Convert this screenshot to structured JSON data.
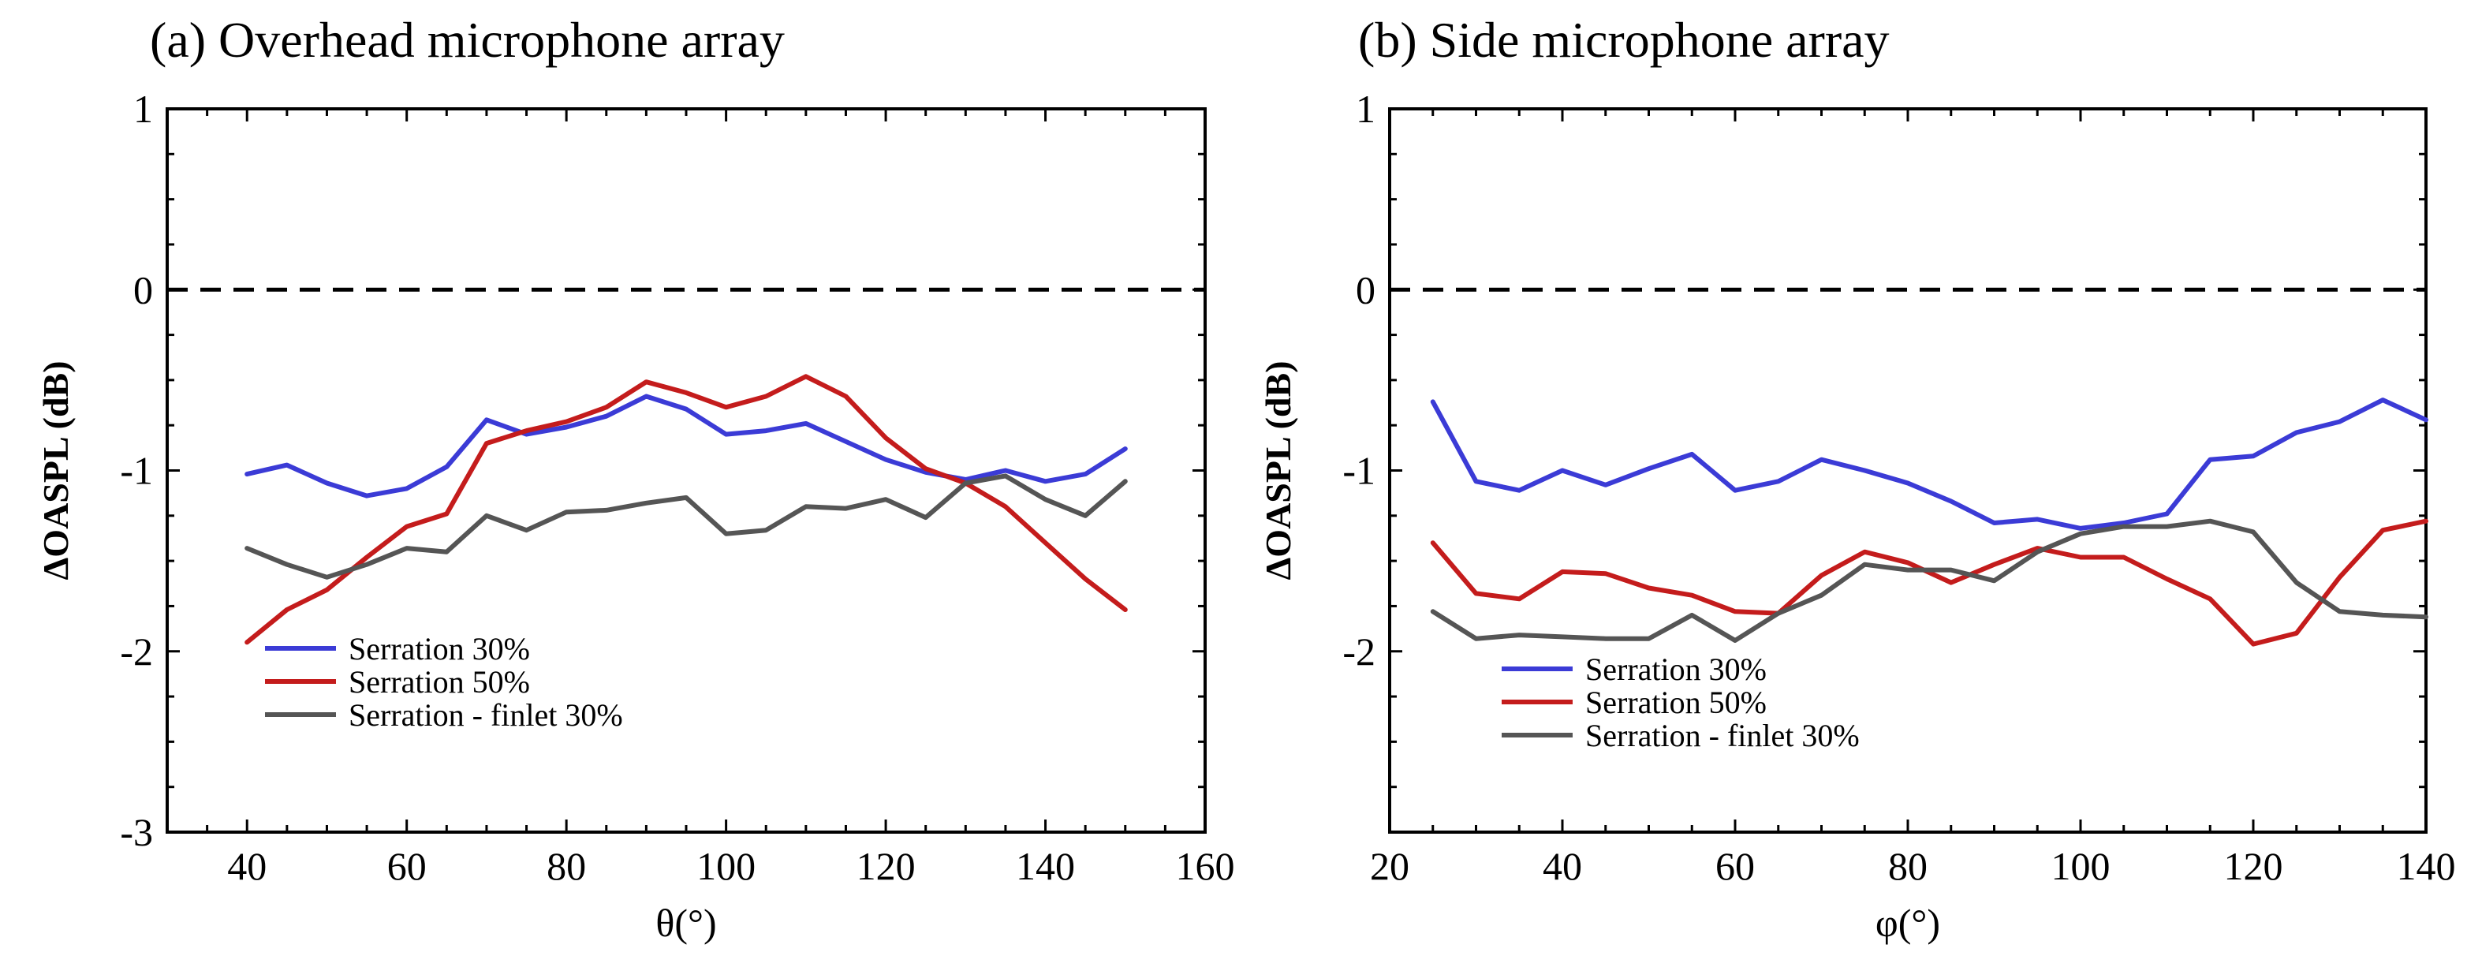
{
  "chart_data": [
    {
      "type": "line",
      "title": "(a) Overhead microphone array",
      "xlabel": "θ(°)",
      "ylabel": "ΔOASPL (dB)",
      "xlim": [
        30,
        160
      ],
      "ylim": [
        -3,
        1
      ],
      "xticks": [
        40,
        60,
        80,
        100,
        120,
        140,
        160
      ],
      "yticks": [
        -3,
        -2,
        -1,
        0,
        1
      ],
      "xtick_labels": [
        "40",
        "60",
        "80",
        "100",
        "120",
        "140",
        "160"
      ],
      "ytick_labels": [
        "-3",
        "-2",
        "-1",
        "0",
        "1"
      ],
      "reference_line": {
        "y": 0,
        "style": "dashed"
      },
      "legend_position": "lower-left",
      "series": [
        {
          "name": "Serration 30%",
          "color": "#3b3bd6",
          "x": [
            40,
            45,
            50,
            55,
            60,
            65,
            70,
            75,
            80,
            85,
            90,
            95,
            100,
            105,
            110,
            115,
            120,
            125,
            130,
            135,
            140,
            145,
            150
          ],
          "y": [
            -1.02,
            -0.97,
            -1.07,
            -1.14,
            -1.1,
            -0.98,
            -0.72,
            -0.8,
            -0.76,
            -0.7,
            -0.59,
            -0.66,
            -0.8,
            -0.78,
            -0.74,
            -0.84,
            -0.94,
            -1.01,
            -1.05,
            -1.0,
            -1.06,
            -1.02,
            -0.88
          ]
        },
        {
          "name": "Serration 50%",
          "color": "#c41c1c",
          "x": [
            40,
            45,
            50,
            55,
            60,
            65,
            70,
            75,
            80,
            85,
            90,
            95,
            100,
            105,
            110,
            115,
            120,
            125,
            130,
            135,
            140,
            145,
            150
          ],
          "y": [
            -1.95,
            -1.77,
            -1.66,
            -1.48,
            -1.31,
            -1.24,
            -0.85,
            -0.78,
            -0.73,
            -0.65,
            -0.51,
            -0.57,
            -0.65,
            -0.59,
            -0.48,
            -0.59,
            -0.82,
            -0.99,
            -1.07,
            -1.2,
            -1.4,
            -1.6,
            -1.77
          ]
        },
        {
          "name": "Serration - finlet 30%",
          "color": "#555555",
          "x": [
            40,
            45,
            50,
            55,
            60,
            65,
            70,
            75,
            80,
            85,
            90,
            95,
            100,
            105,
            110,
            115,
            120,
            125,
            130,
            135,
            140,
            145,
            150
          ],
          "y": [
            -1.43,
            -1.52,
            -1.59,
            -1.52,
            -1.43,
            -1.45,
            -1.25,
            -1.33,
            -1.23,
            -1.22,
            -1.18,
            -1.15,
            -1.35,
            -1.33,
            -1.2,
            -1.21,
            -1.16,
            -1.26,
            -1.07,
            -1.03,
            -1.16,
            -1.25,
            -1.06
          ]
        }
      ]
    },
    {
      "type": "line",
      "title": "(b) Side microphone array",
      "xlabel": "φ(°)",
      "ylabel": "ΔOASPL (dB)",
      "xlim": [
        20,
        140
      ],
      "ylim": [
        -3,
        1
      ],
      "xticks": [
        20,
        40,
        60,
        80,
        100,
        120,
        140
      ],
      "yticks": [
        -2,
        -1,
        0,
        1
      ],
      "xtick_labels": [
        "20",
        "40",
        "60",
        "80",
        "100",
        "120",
        "140"
      ],
      "ytick_labels": [
        "-2",
        "-1",
        "0",
        "1"
      ],
      "reference_line": {
        "y": 0,
        "style": "dashed"
      },
      "legend_position": "lower-left",
      "series": [
        {
          "name": "Serration 30%",
          "color": "#3b3bd6",
          "x": [
            25,
            30,
            35,
            40,
            45,
            50,
            55,
            60,
            65,
            70,
            75,
            80,
            85,
            90,
            95,
            100,
            105,
            110,
            115,
            120,
            125,
            130,
            135,
            140
          ],
          "y": [
            -0.62,
            -1.06,
            -1.11,
            -1.0,
            -1.08,
            -0.99,
            -0.91,
            -1.11,
            -1.06,
            -0.94,
            -1.0,
            -1.07,
            -1.17,
            -1.29,
            -1.27,
            -1.32,
            -1.29,
            -1.24,
            -0.94,
            -0.92,
            -0.79,
            -0.73,
            -0.61,
            -0.72
          ]
        },
        {
          "name": "Serration 50%",
          "color": "#c41c1c",
          "x": [
            25,
            30,
            35,
            40,
            45,
            50,
            55,
            60,
            65,
            70,
            75,
            80,
            85,
            90,
            95,
            100,
            105,
            110,
            115,
            120,
            125,
            130,
            135,
            140
          ],
          "y": [
            -1.4,
            -1.68,
            -1.71,
            -1.56,
            -1.57,
            -1.65,
            -1.69,
            -1.78,
            -1.79,
            -1.58,
            -1.45,
            -1.51,
            -1.62,
            -1.52,
            -1.43,
            -1.48,
            -1.48,
            -1.6,
            -1.71,
            -1.96,
            -1.9,
            -1.59,
            -1.33,
            -1.28
          ]
        },
        {
          "name": "Serration - finlet 30%",
          "color": "#555555",
          "x": [
            25,
            30,
            35,
            40,
            45,
            50,
            55,
            60,
            65,
            70,
            75,
            80,
            85,
            90,
            95,
            100,
            105,
            110,
            115,
            120,
            125,
            130,
            135,
            140
          ],
          "y": [
            -1.78,
            -1.93,
            -1.91,
            -1.92,
            -1.93,
            -1.93,
            -1.8,
            -1.94,
            -1.79,
            -1.69,
            -1.52,
            -1.55,
            -1.55,
            -1.61,
            -1.45,
            -1.35,
            -1.31,
            -1.31,
            -1.28,
            -1.34,
            -1.62,
            -1.78,
            -1.8,
            -1.81
          ]
        }
      ]
    }
  ]
}
